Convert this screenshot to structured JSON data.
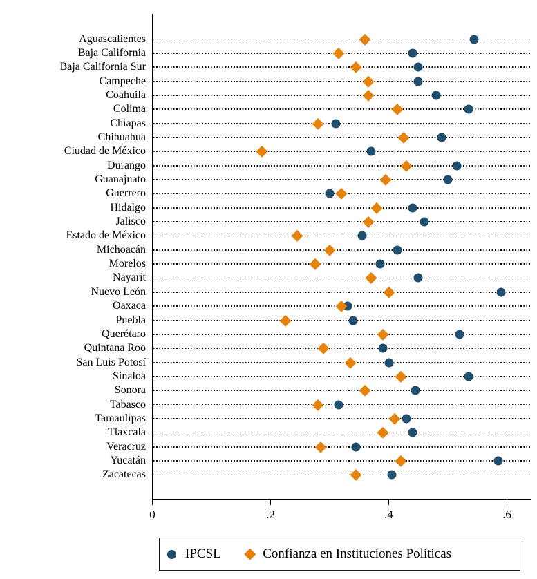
{
  "figure": {
    "background": "#ffffff"
  },
  "colors": {
    "ipcsl": "#1f4e6e",
    "confianza": "#e4820c",
    "axis": "#000000"
  },
  "chart_data": {
    "type": "scatter",
    "subtype": "horizontal-dot-plot",
    "title": "",
    "xlabel": "",
    "ylabel": "",
    "grid": "dotted horizontal line per category",
    "legend_position": "bottom",
    "categories": [
      "Aguascalientes",
      "Baja California",
      "Baja California Sur",
      "Campeche",
      "Coahuila",
      "Colima",
      "Chiapas",
      "Chihuahua",
      "Ciudad de México",
      "Durango",
      "Guanajuato",
      "Guerrero",
      "Hidalgo",
      "Jalisco",
      "Estado de México",
      "Michoacán",
      "Morelos",
      "Nayarit",
      "Nuevo León",
      "Oaxaca",
      "Puebla",
      "Querétaro",
      "Quintana Roo",
      "San Luis Potosí",
      "Sinaloa",
      "Sonora",
      "Tabasco",
      "Tamaulipas",
      "Tlaxcala",
      "Veracruz",
      "Yucatán",
      "Zacatecas"
    ],
    "series": [
      {
        "name": "IPCSL",
        "marker": "circle",
        "color": "#1f4e6e",
        "values": [
          0.545,
          0.44,
          0.45,
          0.45,
          0.48,
          0.535,
          0.31,
          0.49,
          0.37,
          0.515,
          0.5,
          0.3,
          0.44,
          0.46,
          0.355,
          0.415,
          0.385,
          0.45,
          0.59,
          0.33,
          0.34,
          0.52,
          0.39,
          0.4,
          0.535,
          0.445,
          0.315,
          0.43,
          0.44,
          0.345,
          0.585,
          0.405
        ]
      },
      {
        "name": "Confianza en Instituciones Políticas",
        "marker": "diamond",
        "color": "#e4820c",
        "values": [
          0.36,
          0.315,
          0.345,
          0.365,
          0.365,
          0.415,
          0.28,
          0.425,
          0.185,
          0.43,
          0.395,
          0.32,
          0.38,
          0.365,
          0.245,
          0.3,
          0.275,
          0.37,
          0.4,
          0.32,
          0.225,
          0.39,
          0.29,
          0.335,
          0.42,
          0.36,
          0.28,
          0.41,
          0.39,
          0.285,
          0.42,
          0.345
        ]
      }
    ],
    "x_axis": {
      "range": [
        0,
        0.64
      ],
      "ticks": [
        0,
        0.2,
        0.4,
        0.6
      ],
      "tick_labels": [
        "0",
        ".2",
        ".4",
        ".6"
      ]
    }
  }
}
